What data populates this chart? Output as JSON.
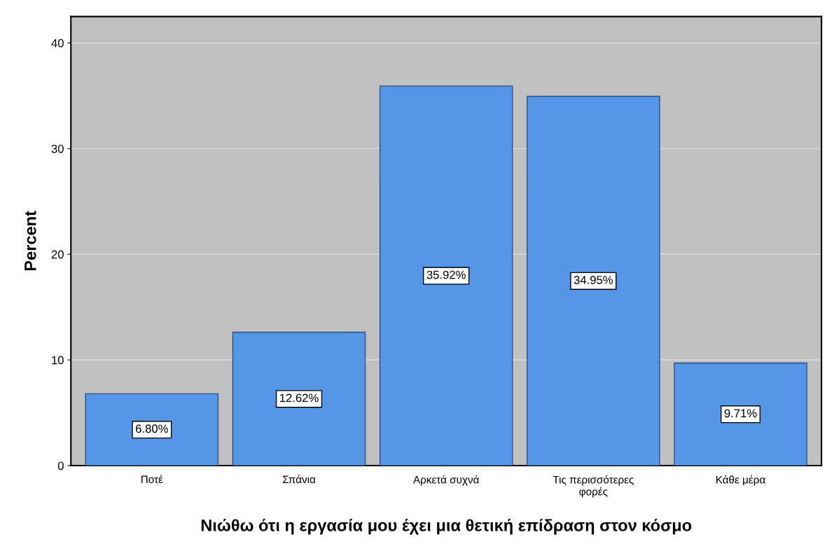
{
  "chart_data": {
    "type": "bar",
    "xlabel": "Νιώθω ότι η εργασία μου έχει μια θετική επίδραση στον κόσμο",
    "ylabel": "Percent",
    "categories": [
      "Ποτέ",
      "Σπάνια",
      "Αρκετά συχνά",
      "Τις περισσότερες φορές",
      "Κάθε μέρα"
    ],
    "values": [
      6.8,
      12.62,
      35.92,
      34.95,
      9.71
    ],
    "value_labels": [
      "6.80%",
      "12.62%",
      "35.92%",
      "34.95%",
      "9.71%"
    ],
    "color": "#5596e6",
    "ylim": [
      0,
      42.5
    ],
    "yticks": [
      0,
      10,
      20,
      30,
      40
    ],
    "grid": "y"
  }
}
